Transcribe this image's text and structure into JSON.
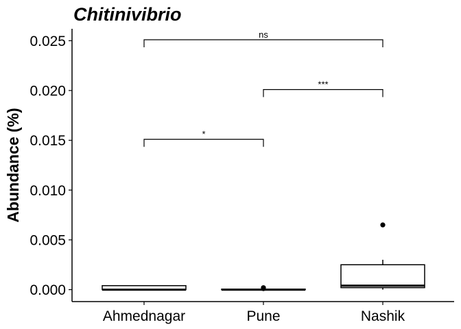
{
  "chart_data": {
    "type": "box",
    "title": "Chitinivibrio",
    "ylabel": "Abundance (%)",
    "xlabel": "",
    "ylim": [
      -0.0012,
      0.0262
    ],
    "yticks": [
      0.0,
      0.005,
      0.01,
      0.015,
      0.02,
      0.025
    ],
    "ytick_labels": [
      "0.000",
      "0.005",
      "0.010",
      "0.015",
      "0.020",
      "0.025"
    ],
    "categories": [
      "Ahmednagar",
      "Pune",
      "Nashik"
    ],
    "boxes": [
      {
        "category": "Ahmednagar",
        "whisker_low": 0.0,
        "q1": 0.0,
        "median": 0.0,
        "q3": 0.0004,
        "whisker_high": 0.0004,
        "outliers": []
      },
      {
        "category": "Pune",
        "whisker_low": 0.0,
        "q1": 0.0,
        "median": 0.0,
        "q3": 5e-05,
        "whisker_high": 5e-05,
        "outliers": [
          0.0002,
          0.0001
        ]
      },
      {
        "category": "Nashik",
        "whisker_low": 0.0,
        "q1": 0.0002,
        "median": 0.0004,
        "q3": 0.0025,
        "whisker_high": 0.003,
        "outliers": [
          0.0065
        ]
      }
    ],
    "comparisons": [
      {
        "from": "Ahmednagar",
        "to": "Pune",
        "y": 0.0151,
        "label": "*"
      },
      {
        "from": "Pune",
        "to": "Nashik",
        "y": 0.0201,
        "label": "***"
      },
      {
        "from": "Ahmednagar",
        "to": "Nashik",
        "y": 0.0251,
        "label": "ns"
      }
    ],
    "grid": false,
    "legend": "none",
    "colors": {
      "box_fill": "#ffffff",
      "stroke": "#000000",
      "background": "#ffffff"
    }
  }
}
